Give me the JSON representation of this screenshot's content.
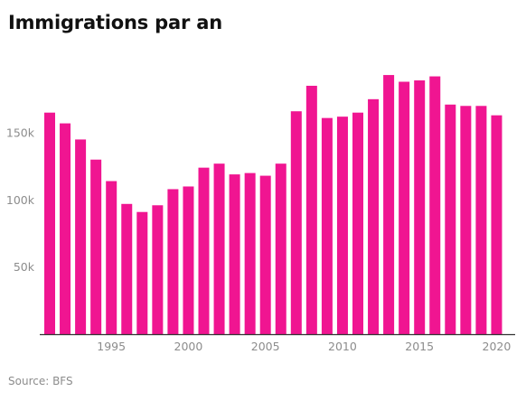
{
  "chart_data": {
    "type": "bar",
    "title": "Immigrations par an",
    "source": "Source: BFS",
    "xlabel": "",
    "ylabel": "",
    "categories": [
      1991,
      1992,
      1993,
      1994,
      1995,
      1996,
      1997,
      1998,
      1999,
      2000,
      2001,
      2002,
      2003,
      2004,
      2005,
      2006,
      2007,
      2008,
      2009,
      2010,
      2011,
      2012,
      2013,
      2014,
      2015,
      2016,
      2017,
      2018,
      2019,
      2020
    ],
    "values": [
      165000,
      157000,
      145000,
      130000,
      114000,
      97000,
      91000,
      96000,
      108000,
      110000,
      124000,
      127000,
      119000,
      120000,
      118000,
      127000,
      166000,
      185000,
      161000,
      162000,
      165000,
      175000,
      193000,
      188000,
      189000,
      192000,
      171000,
      170000,
      170000,
      163000
    ],
    "ylim": [
      0,
      210000
    ],
    "y_ticks": [
      50000,
      100000,
      150000
    ],
    "y_tick_labels": [
      "50k",
      "100k",
      "150k"
    ],
    "x_ticks": [
      1995,
      2000,
      2005,
      2010,
      2015,
      2020
    ],
    "x_tick_labels": [
      "1995",
      "2000",
      "2005",
      "2010",
      "2015",
      "2020"
    ],
    "grid": false,
    "legend": "none",
    "bar_color": "#f01591",
    "axis_color": "#333333",
    "text_color": "#8c8c8c"
  }
}
